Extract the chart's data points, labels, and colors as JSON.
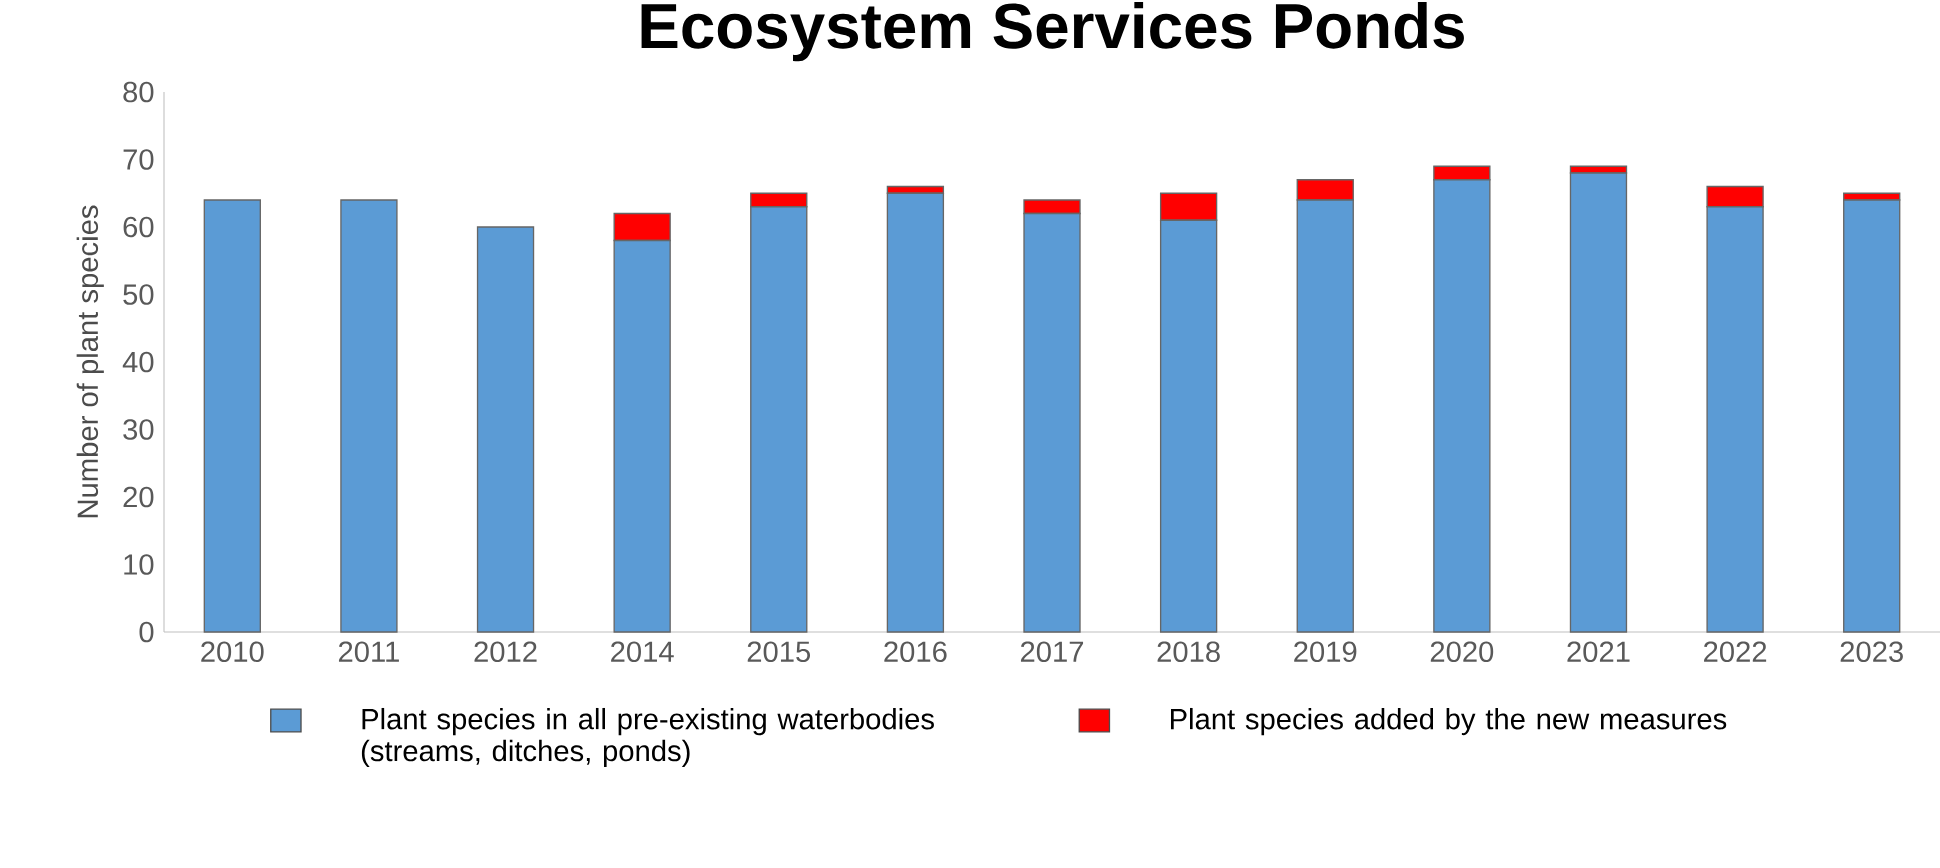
{
  "chart_data": {
    "type": "bar",
    "title": "Ecosystem Services Ponds",
    "ylabel": "Number of plant species",
    "categories": [
      "2010",
      "2011",
      "2012",
      "2014",
      "2015",
      "2016",
      "2017",
      "2018",
      "2019",
      "2020",
      "2021",
      "2022",
      "2023"
    ],
    "series": [
      {
        "name": "Plant species in all pre-existing waterbodies (streams, ditches, ponds)",
        "color": "#5b9bd5",
        "values": [
          64,
          64,
          60,
          58,
          63,
          65,
          62,
          61,
          64,
          67,
          68,
          63,
          64
        ]
      },
      {
        "name": "Plant species added by the new measures",
        "color": "#ff0000",
        "values": [
          0,
          0,
          0,
          4,
          2,
          1,
          2,
          4,
          3,
          2,
          1,
          3,
          1
        ]
      }
    ],
    "stacked": true,
    "ylim": [
      0,
      80
    ],
    "yticks": [
      0,
      10,
      20,
      30,
      40,
      50,
      60,
      70,
      80
    ],
    "grid": false,
    "legend": "bottom"
  }
}
